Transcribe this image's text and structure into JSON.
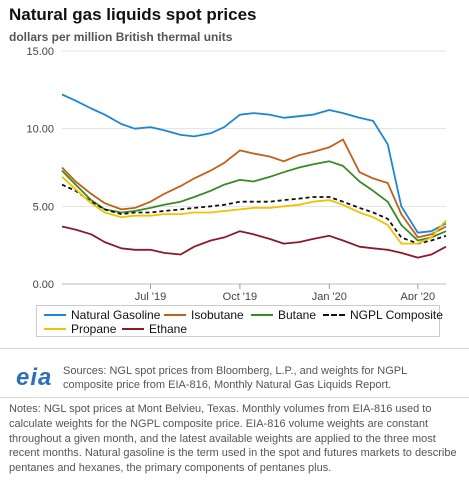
{
  "header": {
    "title": "Natural gas liquids spot prices",
    "subtitle": "dollars per million British thermal units"
  },
  "footer": {
    "logo_text": "eia",
    "sources": "Sources: NGL spot prices from Bloomberg, L.P., and weights for NGPL composite price from EIA-816, Monthly Natural Gas Liquids Report.",
    "notes": "Notes: NGL spot prices at Mont Belvieu, Texas. Monthly volumes from EIA-816 used to calculate weights for the NGPL composite price. EIA-816 volume weights are constant throughout a given month, and the latest available weights are applied to the three most recent months. Natural gasoline is the term used in the spot and futures markets to describe pentanes and hexanes, the primary components of pentanes plus."
  },
  "chart_data": {
    "type": "line",
    "title": "Natural gas liquids spot prices",
    "ylabel": "dollars per million British thermal units",
    "ylim": [
      0,
      15
    ],
    "yticks": [
      "0.00",
      "5.00",
      "10.00",
      "15.00"
    ],
    "xlim": [
      "2019-04-01",
      "2020-04-30"
    ],
    "xticks": [
      {
        "date": "2019-07-01",
        "label": "Jul '19"
      },
      {
        "date": "2019-10-01",
        "label": "Oct '19"
      },
      {
        "date": "2020-01-01",
        "label": "Jan '20"
      },
      {
        "date": "2020-04-01",
        "label": "Apr '20"
      }
    ],
    "grid": "horizontal",
    "legend": "bottom",
    "x": [
      "2019-04-01",
      "2019-04-15",
      "2019-05-01",
      "2019-05-15",
      "2019-06-01",
      "2019-06-15",
      "2019-07-01",
      "2019-07-15",
      "2019-08-01",
      "2019-08-15",
      "2019-09-01",
      "2019-09-15",
      "2019-10-01",
      "2019-10-15",
      "2019-11-01",
      "2019-11-15",
      "2019-12-01",
      "2019-12-15",
      "2020-01-01",
      "2020-01-15",
      "2020-02-01",
      "2020-02-15",
      "2020-03-01",
      "2020-03-15",
      "2020-04-01",
      "2020-04-15",
      "2020-04-30"
    ],
    "series": [
      {
        "name": "Natural Gasoline",
        "color": "#1f86d0",
        "style": "solid",
        "values": [
          12.2,
          11.8,
          11.3,
          10.9,
          10.3,
          10.0,
          10.1,
          9.9,
          9.6,
          9.5,
          9.7,
          10.1,
          10.9,
          11.0,
          10.9,
          10.7,
          10.8,
          10.9,
          11.2,
          11.0,
          10.7,
          10.5,
          9.0,
          5.0,
          3.3,
          3.4,
          3.9
        ]
      },
      {
        "name": "Isobutane",
        "color": "#c0601a",
        "style": "solid",
        "values": [
          7.5,
          6.6,
          5.8,
          5.2,
          4.8,
          4.9,
          5.3,
          5.8,
          6.3,
          6.8,
          7.3,
          7.8,
          8.6,
          8.4,
          8.2,
          7.9,
          8.3,
          8.5,
          8.8,
          9.3,
          7.2,
          6.8,
          6.5,
          4.5,
          3.0,
          3.2,
          3.7
        ]
      },
      {
        "name": "Butane",
        "color": "#3a8a22",
        "style": "solid",
        "values": [
          7.3,
          6.4,
          5.4,
          4.8,
          4.6,
          4.7,
          4.9,
          5.1,
          5.3,
          5.6,
          6.0,
          6.4,
          6.7,
          6.6,
          6.9,
          7.2,
          7.5,
          7.7,
          7.9,
          7.6,
          6.6,
          6.0,
          5.3,
          3.8,
          2.8,
          3.0,
          3.4
        ]
      },
      {
        "name": "NGPL Composite",
        "color": "#111111",
        "style": "dashed",
        "values": [
          6.4,
          6.0,
          5.3,
          4.8,
          4.5,
          4.6,
          4.6,
          4.7,
          4.8,
          4.9,
          5.0,
          5.1,
          5.3,
          5.3,
          5.3,
          5.4,
          5.5,
          5.6,
          5.6,
          5.3,
          4.9,
          4.6,
          4.2,
          3.0,
          2.6,
          2.8,
          3.1
        ]
      },
      {
        "name": "Propane",
        "color": "#f2c100",
        "style": "solid",
        "values": [
          6.9,
          6.1,
          5.2,
          4.6,
          4.3,
          4.4,
          4.4,
          4.5,
          4.5,
          4.6,
          4.6,
          4.7,
          4.8,
          4.9,
          4.9,
          5.0,
          5.1,
          5.3,
          5.4,
          5.1,
          4.6,
          4.3,
          3.8,
          2.6,
          2.6,
          3.0,
          4.1
        ]
      },
      {
        "name": "Ethane",
        "color": "#8b1a2a",
        "style": "solid",
        "values": [
          3.7,
          3.5,
          3.2,
          2.7,
          2.3,
          2.2,
          2.2,
          2.0,
          1.9,
          2.4,
          2.8,
          3.0,
          3.4,
          3.2,
          2.9,
          2.6,
          2.7,
          2.9,
          3.1,
          2.8,
          2.4,
          2.3,
          2.2,
          2.0,
          1.7,
          1.9,
          2.4
        ]
      }
    ]
  }
}
